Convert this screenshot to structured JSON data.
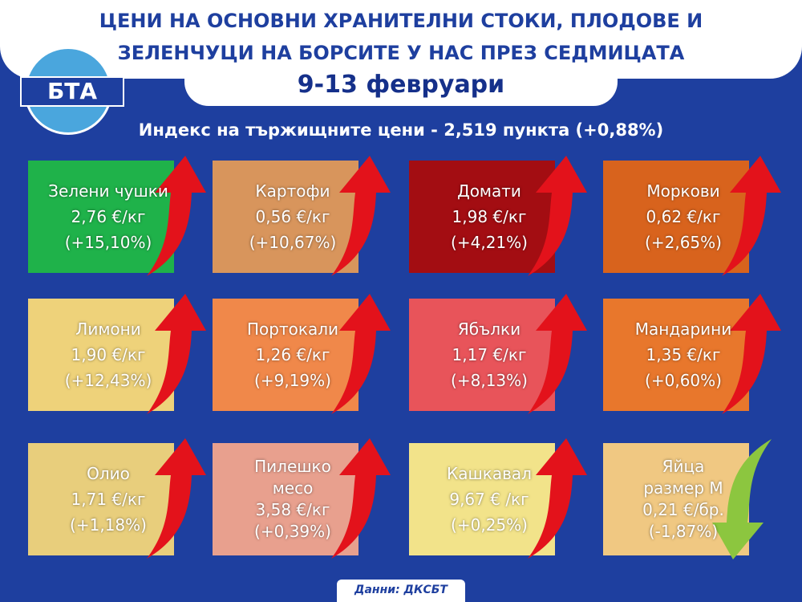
{
  "header": {
    "title_line1": "ЦЕНИ НА ОСНОВНИ ХРАНИТЕЛНИ СТОКИ, ПЛОДОВЕ И",
    "title_line2": "ЗЕЛЕНЧУЦИ НА БОРСИТЕ У НАС ПРЕЗ СЕДМИЦАТА",
    "date": "9-13 февруари",
    "logo": "БТА"
  },
  "index_line": "Индекс на тържищните цени - 2,519 пункта (+0,88%)",
  "tiles": [
    {
      "name": "Зелени чушки",
      "price": "2,76 €/кг",
      "change": "(+15,10%)",
      "color": "#1fb24a"
    },
    {
      "name": "Картофи",
      "price": "0,56 €/кг",
      "change": "(+10,67%)",
      "color": "#d8955c"
    },
    {
      "name": "Домати",
      "price": "1,98 €/кг",
      "change": "(+4,21%)",
      "color": "#a30d12"
    },
    {
      "name": "Моркови",
      "price": "0,62 €/кг",
      "change": "(+2,65%)",
      "color": "#d8631d"
    },
    {
      "name": "Лимони",
      "price": "1,90 €/кг",
      "change": "(+12,43%)",
      "color": "#eed27a"
    },
    {
      "name": "Портокали",
      "price": "1,26 €/кг",
      "change": "(+9,19%)",
      "color": "#f0884a"
    },
    {
      "name": "Ябълки",
      "price": "1,17 €/кг",
      "change": "(+8,13%)",
      "color": "#e8545a"
    },
    {
      "name": "Мандарини",
      "price": "1,35 €/кг",
      "change": "(+0,60%)",
      "color": "#e8772c"
    },
    {
      "name": "Олио",
      "price": "1,71 €/кг",
      "change": "(+1,18%)",
      "color": "#e8ce7c"
    },
    {
      "name": [
        "Пилешко",
        "месо"
      ],
      "price": "3,58 €/кг",
      "change": "(+0,39%)",
      "color": "#e8a08e"
    },
    {
      "name": "Кашкавал",
      "price": "9,67 € /кг",
      "change": "(+0,25%)",
      "color": "#f2e38a"
    },
    {
      "name": [
        "Яйца",
        "размер М"
      ],
      "price": "0,21 €/бр.",
      "change": "(-1,87%)",
      "color": "#f0c882"
    }
  ],
  "source": "Данни: ДКСБТ"
}
